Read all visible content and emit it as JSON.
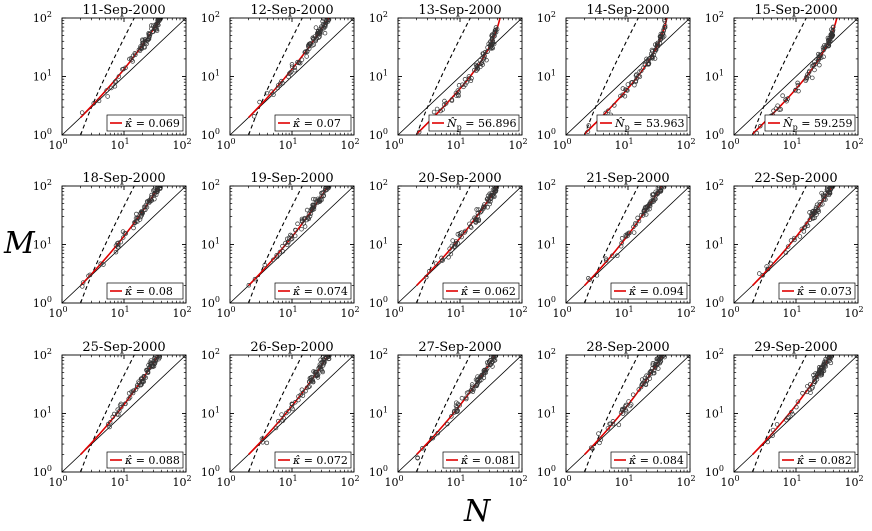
{
  "figure": {
    "ylabel": "M",
    "xlabel": "N"
  },
  "chart_data": {
    "type": "scatter",
    "xscale": "log",
    "yscale": "log",
    "xlim": [
      1,
      100
    ],
    "ylim": [
      1,
      100
    ],
    "xticks": [
      1,
      10,
      100
    ],
    "yticks": [
      1,
      10,
      100
    ],
    "tick_base": "10",
    "tick_exponents": [
      "0",
      "1",
      "2"
    ],
    "panels": [
      {
        "title": "11-Sep-2000",
        "legend_symbol": "κ̂",
        "legend_value": "0.069",
        "fit": "kappa",
        "kappa": 0.069
      },
      {
        "title": "12-Sep-2000",
        "legend_symbol": "κ̂",
        "legend_value": "0.07",
        "fit": "kappa",
        "kappa": 0.07
      },
      {
        "title": "13-Sep-2000",
        "legend_symbol": "N̂",
        "legend_subscript": "p",
        "legend_value": "56.896",
        "fit": "np",
        "np": 56.896
      },
      {
        "title": "14-Sep-2000",
        "legend_symbol": "N̂",
        "legend_subscript": "p",
        "legend_value": "53.963",
        "fit": "np",
        "np": 53.963
      },
      {
        "title": "15-Sep-2000",
        "legend_symbol": "N̂",
        "legend_subscript": "p",
        "legend_value": "59.259",
        "fit": "np",
        "np": 59.259
      },
      {
        "title": "18-Sep-2000",
        "legend_symbol": "κ̂",
        "legend_value": "0.08",
        "fit": "kappa",
        "kappa": 0.08
      },
      {
        "title": "19-Sep-2000",
        "legend_symbol": "κ̂",
        "legend_value": "0.074",
        "fit": "kappa",
        "kappa": 0.074
      },
      {
        "title": "20-Sep-2000",
        "legend_symbol": "κ̂",
        "legend_value": "0.062",
        "fit": "kappa",
        "kappa": 0.062
      },
      {
        "title": "21-Sep-2000",
        "legend_symbol": "κ̂",
        "legend_value": "0.094",
        "fit": "kappa",
        "kappa": 0.094
      },
      {
        "title": "22-Sep-2000",
        "legend_symbol": "κ̂",
        "legend_value": "0.073",
        "fit": "kappa",
        "kappa": 0.073
      },
      {
        "title": "25-Sep-2000",
        "legend_symbol": "κ̂",
        "legend_value": "0.088",
        "fit": "kappa",
        "kappa": 0.088
      },
      {
        "title": "26-Sep-2000",
        "legend_symbol": "κ̂",
        "legend_value": "0.072",
        "fit": "kappa",
        "kappa": 0.072
      },
      {
        "title": "27-Sep-2000",
        "legend_symbol": "κ̂",
        "legend_value": "0.081",
        "fit": "kappa",
        "kappa": 0.081
      },
      {
        "title": "28-Sep-2000",
        "legend_symbol": "κ̂",
        "legend_value": "0.084",
        "fit": "kappa",
        "kappa": 0.084
      },
      {
        "title": "29-Sep-2000",
        "legend_symbol": "κ̂",
        "legend_value": "0.082",
        "fit": "kappa",
        "kappa": 0.082
      }
    ],
    "reference_lines": [
      {
        "style": "solid",
        "color": "#000000",
        "relation": "M = N"
      },
      {
        "style": "dashed",
        "color": "#000000",
        "relation": "M = N(N-1)/2"
      }
    ],
    "fit_color": "#e00000",
    "marker": "open-circle",
    "grid": false,
    "legend_position": "bottom-right"
  }
}
